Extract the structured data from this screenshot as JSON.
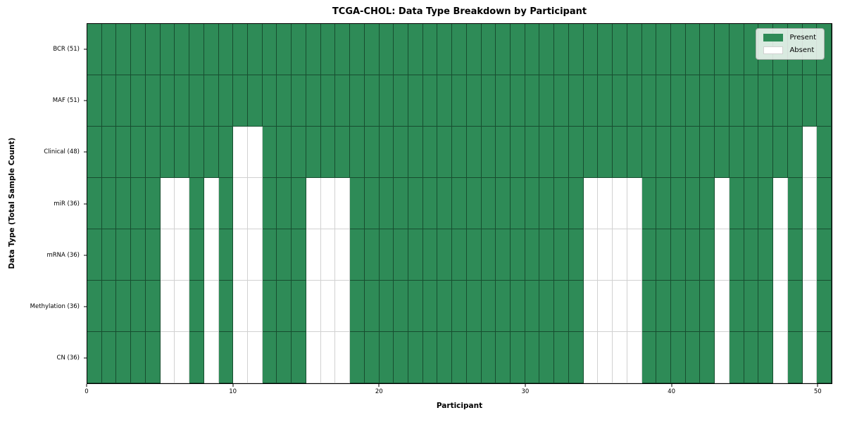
{
  "chart_data": {
    "type": "heatmap",
    "title": "TCGA-CHOL: Data Type Breakdown by Participant",
    "xlabel": "Participant",
    "ylabel": "Data Type (Total Sample Count)",
    "x_ticks": [
      0,
      10,
      20,
      30,
      40,
      50
    ],
    "x_range": [
      0,
      51
    ],
    "n_participants": 51,
    "grid": true,
    "legend_position": "upper right",
    "legend": [
      {
        "label": "Present",
        "color": "#2e8b57"
      },
      {
        "label": "Absent",
        "color": "#ffffff"
      }
    ],
    "colors": {
      "present": "#2e8b57",
      "absent": "#ffffff",
      "frame": "#000000"
    },
    "rows": [
      {
        "label": "BCR (51)",
        "data_type": "BCR",
        "total": 51,
        "absent_participants": []
      },
      {
        "label": "MAF (51)",
        "data_type": "MAF",
        "total": 51,
        "absent_participants": []
      },
      {
        "label": "Clinical (48)",
        "data_type": "Clinical",
        "total": 48,
        "absent_participants": [
          10,
          11,
          49
        ]
      },
      {
        "label": "miR (36)",
        "data_type": "miR",
        "total": 36,
        "absent_participants": [
          5,
          6,
          8,
          10,
          11,
          15,
          16,
          17,
          34,
          35,
          36,
          37,
          43,
          47,
          49
        ]
      },
      {
        "label": "mRNA (36)",
        "data_type": "mRNA",
        "total": 36,
        "absent_participants": [
          5,
          6,
          8,
          10,
          11,
          15,
          16,
          17,
          34,
          35,
          36,
          37,
          43,
          47,
          49
        ]
      },
      {
        "label": "Methylation (36)",
        "data_type": "Methylation",
        "total": 36,
        "absent_participants": [
          5,
          6,
          8,
          10,
          11,
          15,
          16,
          17,
          34,
          35,
          36,
          37,
          43,
          47,
          49
        ]
      },
      {
        "label": "CN (36)",
        "data_type": "CN",
        "total": 36,
        "absent_participants": [
          5,
          6,
          8,
          10,
          11,
          15,
          16,
          17,
          34,
          35,
          36,
          37,
          43,
          47,
          49
        ]
      }
    ]
  }
}
